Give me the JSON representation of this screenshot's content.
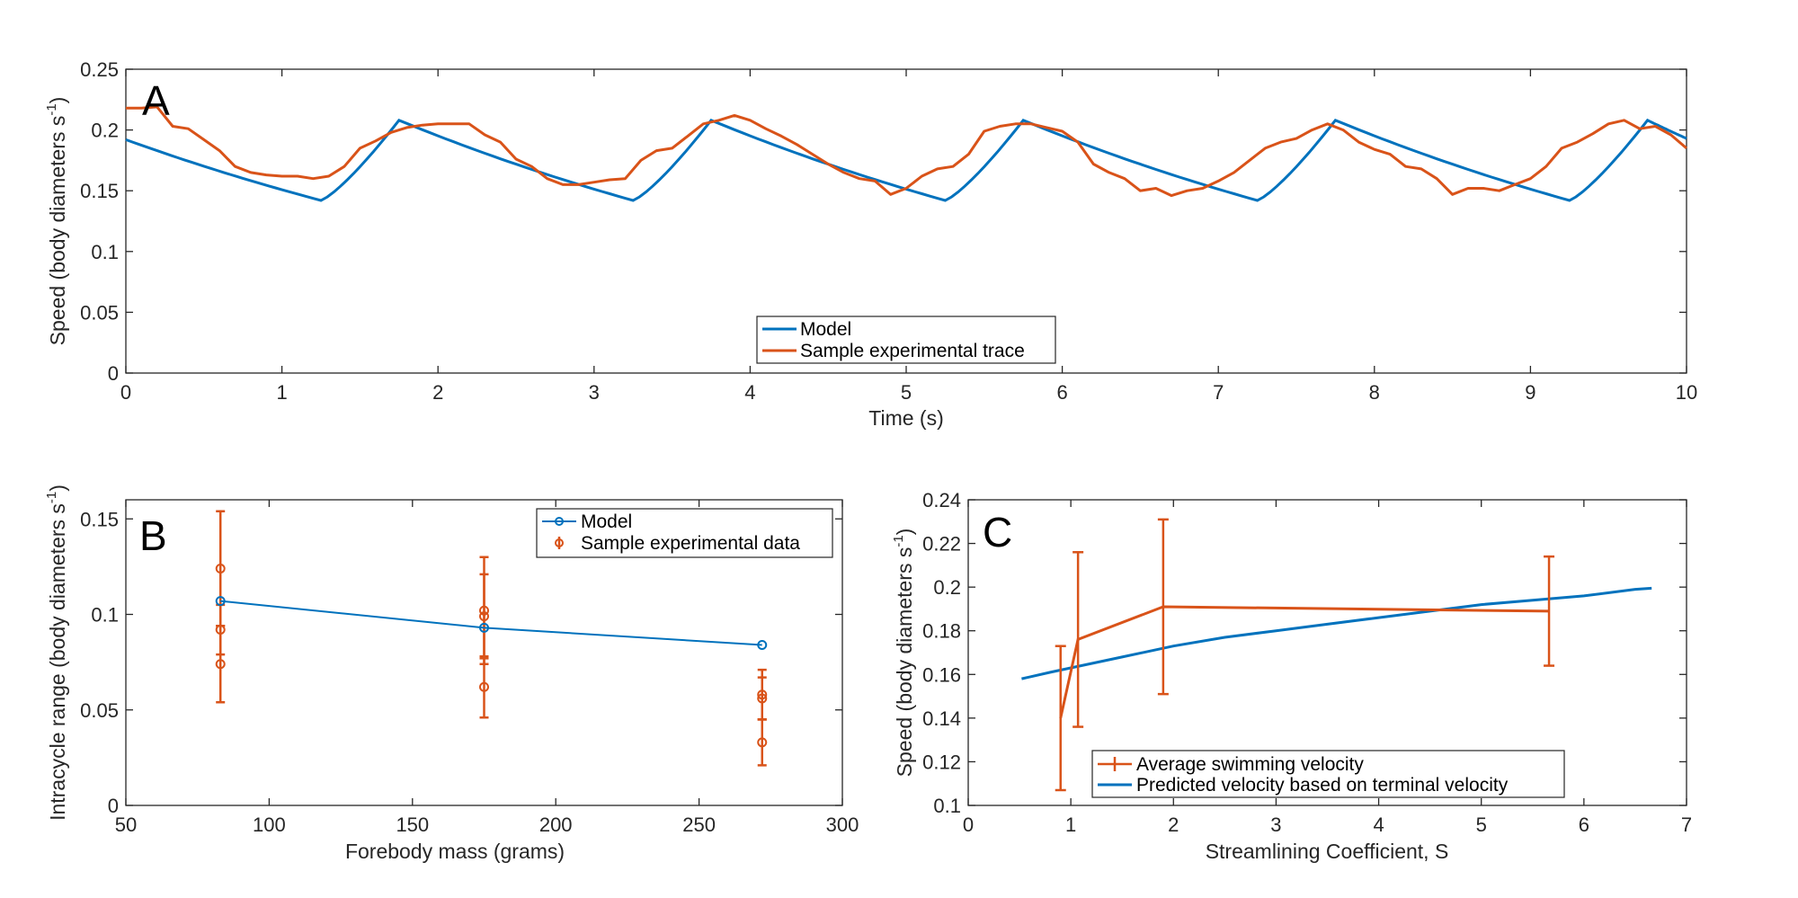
{
  "colors": {
    "model": "#0072BD",
    "experimental": "#D95319",
    "axis": "#262626"
  },
  "chart_data": [
    {
      "panel": "A",
      "type": "line",
      "xlabel": "Time (s)",
      "ylabel": "Speed (body diameters s",
      "ylabel_sup": "-1",
      "ylabel_close": ")",
      "xlim": [
        0,
        10
      ],
      "ylim": [
        0,
        0.25
      ],
      "xticks": [
        "0",
        "1",
        "2",
        "3",
        "4",
        "5",
        "6",
        "7",
        "8",
        "9",
        "10"
      ],
      "yticks": [
        "0",
        "0.05",
        "0.1",
        "0.15",
        "0.2",
        "0.25"
      ],
      "legend": [
        "Model",
        "Sample experimental trace"
      ],
      "legend_position": "bottom-center",
      "series": [
        {
          "name": "Model",
          "x": [
            0,
            1.25,
            1.75,
            3.25,
            3.75,
            5.25,
            5.75,
            7.25,
            7.75,
            9.25,
            9.75,
            10
          ],
          "y": [
            0.192,
            0.142,
            0.208,
            0.142,
            0.208,
            0.142,
            0.208,
            0.142,
            0.208,
            0.142,
            0.208,
            0.193
          ],
          "decay_curve": true
        },
        {
          "name": "Sample experimental trace",
          "x": [
            0,
            0.1,
            0.2,
            0.3,
            0.4,
            0.5,
            0.6,
            0.7,
            0.8,
            0.9,
            1.0,
            1.1,
            1.2,
            1.3,
            1.4,
            1.5,
            1.6,
            1.7,
            1.8,
            1.9,
            2.0,
            2.1,
            2.2,
            2.3,
            2.4,
            2.5,
            2.6,
            2.7,
            2.8,
            2.9,
            3.0,
            3.1,
            3.2,
            3.3,
            3.4,
            3.5,
            3.6,
            3.7,
            3.8,
            3.9,
            4.0,
            4.1,
            4.2,
            4.3,
            4.4,
            4.5,
            4.6,
            4.7,
            4.8,
            4.9,
            5.0,
            5.1,
            5.2,
            5.3,
            5.4,
            5.5,
            5.6,
            5.7,
            5.8,
            5.9,
            6.0,
            6.1,
            6.2,
            6.3,
            6.4,
            6.5,
            6.6,
            6.7,
            6.8,
            6.9,
            7.0,
            7.1,
            7.2,
            7.3,
            7.4,
            7.5,
            7.6,
            7.7,
            7.8,
            7.9,
            8.0,
            8.1,
            8.2,
            8.3,
            8.4,
            8.5,
            8.6,
            8.7,
            8.8,
            8.9,
            9.0,
            9.1,
            9.2,
            9.3,
            9.4,
            9.5,
            9.6,
            9.7,
            9.8,
            9.9,
            10.0
          ],
          "y": [
            0.218,
            0.218,
            0.219,
            0.203,
            0.201,
            0.192,
            0.183,
            0.17,
            0.165,
            0.163,
            0.162,
            0.162,
            0.16,
            0.162,
            0.17,
            0.185,
            0.191,
            0.198,
            0.202,
            0.204,
            0.205,
            0.205,
            0.205,
            0.196,
            0.19,
            0.176,
            0.17,
            0.16,
            0.155,
            0.155,
            0.157,
            0.159,
            0.16,
            0.175,
            0.183,
            0.185,
            0.195,
            0.205,
            0.208,
            0.212,
            0.208,
            0.201,
            0.195,
            0.188,
            0.18,
            0.172,
            0.165,
            0.16,
            0.158,
            0.147,
            0.152,
            0.162,
            0.168,
            0.17,
            0.18,
            0.199,
            0.203,
            0.205,
            0.205,
            0.202,
            0.199,
            0.19,
            0.172,
            0.165,
            0.16,
            0.15,
            0.152,
            0.146,
            0.15,
            0.152,
            0.158,
            0.165,
            0.175,
            0.185,
            0.19,
            0.193,
            0.2,
            0.205,
            0.2,
            0.19,
            0.184,
            0.18,
            0.17,
            0.168,
            0.16,
            0.147,
            0.152,
            0.152,
            0.15,
            0.155,
            0.16,
            0.17,
            0.185,
            0.19,
            0.197,
            0.205,
            0.208,
            0.201,
            0.203,
            0.196,
            0.185
          ]
        }
      ]
    },
    {
      "panel": "B",
      "type": "line",
      "xlabel": "Forebody mass (grams)",
      "ylabel": "Intracycle range (body diameters s",
      "ylabel_sup": "-1",
      "ylabel_close": ")",
      "xlim": [
        50,
        300
      ],
      "ylim": [
        0,
        0.16
      ],
      "xticks": [
        "50",
        "100",
        "150",
        "200",
        "250",
        "300"
      ],
      "yticks": [
        "0",
        "0.05",
        "0.1",
        "0.15"
      ],
      "legend": [
        "Model",
        "Sample experimental data"
      ],
      "legend_position": "top-right",
      "series": [
        {
          "name": "Model",
          "x": [
            83,
            175,
            272
          ],
          "y": [
            0.107,
            0.093,
            0.084
          ]
        },
        {
          "name": "Sample experimental data",
          "points": [
            {
              "x": 83,
              "y": 0.124,
              "err": 0.03
            },
            {
              "x": 83,
              "y": 0.092,
              "err": 0.013
            },
            {
              "x": 83,
              "y": 0.074,
              "err": 0.02
            },
            {
              "x": 175,
              "y": 0.102,
              "err": 0.028
            },
            {
              "x": 175,
              "y": 0.099,
              "err": 0.022
            },
            {
              "x": 175,
              "y": 0.062,
              "err": 0.016
            },
            {
              "x": 272,
              "y": 0.058,
              "err": 0.013
            },
            {
              "x": 272,
              "y": 0.056,
              "err": 0.011
            },
            {
              "x": 272,
              "y": 0.033,
              "err": 0.012
            }
          ]
        }
      ]
    },
    {
      "panel": "C",
      "type": "line",
      "xlabel": "Streamlining Coefficient, S",
      "ylabel": "Speed (body diameters s",
      "ylabel_sup": "-1",
      "ylabel_close": ")",
      "xlim": [
        0,
        7
      ],
      "ylim": [
        0.1,
        0.24
      ],
      "xticks": [
        "0",
        "1",
        "2",
        "3",
        "4",
        "5",
        "6",
        "7"
      ],
      "yticks": [
        "0.1",
        "0.12",
        "0.14",
        "0.16",
        "0.18",
        "0.2",
        "0.22",
        "0.24"
      ],
      "legend": [
        "Average swimming velocity",
        "Predicted velocity based on terminal velocity"
      ],
      "legend_position": "bottom-center",
      "series": [
        {
          "name": "Average swimming velocity",
          "x": [
            0.9,
            1.07,
            1.9,
            5.66
          ],
          "y": [
            0.14,
            0.176,
            0.191,
            0.189
          ],
          "err": [
            0.033,
            0.04,
            0.04,
            0.025
          ]
        },
        {
          "name": "Predicted velocity based on terminal velocity",
          "x": [
            0.52,
            0.8,
            1.0,
            1.5,
            2.0,
            2.5,
            3.0,
            3.5,
            4.0,
            4.5,
            5.0,
            5.5,
            6.0,
            6.5,
            6.66
          ],
          "y": [
            0.158,
            0.161,
            0.163,
            0.168,
            0.173,
            0.177,
            0.18,
            0.183,
            0.186,
            0.189,
            0.192,
            0.194,
            0.196,
            0.199,
            0.1995
          ]
        }
      ]
    }
  ]
}
